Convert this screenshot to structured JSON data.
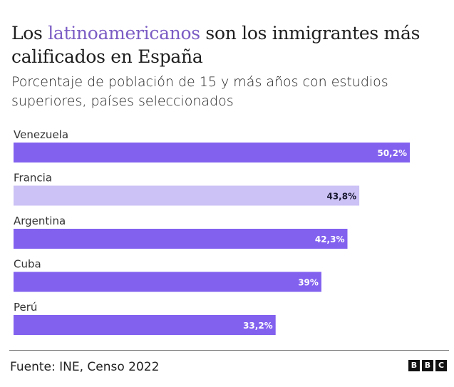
{
  "title": {
    "before": "Los ",
    "highlight": "latinoamericanos",
    "after": " son los inmigrantes más calificados en España"
  },
  "subtitle": "Porcentaje de población de 15 y más años con estudios superiores, países seleccionados",
  "colors": {
    "highlight": "#7b5cc4",
    "bar_primary": "#8261ef",
    "bar_secondary": "#ccc2f5",
    "label_on_primary": "#ffffff",
    "label_on_secondary": "#1a1a33"
  },
  "chart_data": {
    "type": "bar",
    "orientation": "horizontal",
    "title": "Los latinoamericanos son los inmigrantes más calificados en España",
    "subtitle": "Porcentaje de población de 15 y más años con estudios superiores, países seleccionados",
    "categories": [
      "Venezuela",
      "Francia",
      "Argentina",
      "Cuba",
      "Perú"
    ],
    "values": [
      50.2,
      43.8,
      42.3,
      39,
      33.2
    ],
    "value_labels": [
      "50,2%",
      "43,8%",
      "42,3%",
      "39%",
      "33,2%"
    ],
    "highlighted": [
      true,
      false,
      true,
      true,
      true
    ],
    "xlabel": "",
    "ylabel": "",
    "xlim": [
      0,
      50.2
    ],
    "grid": false,
    "legend": "none"
  },
  "footer": {
    "source": "Fuente: INE, Censo 2022",
    "logo_letters": [
      "B",
      "B",
      "C"
    ]
  }
}
